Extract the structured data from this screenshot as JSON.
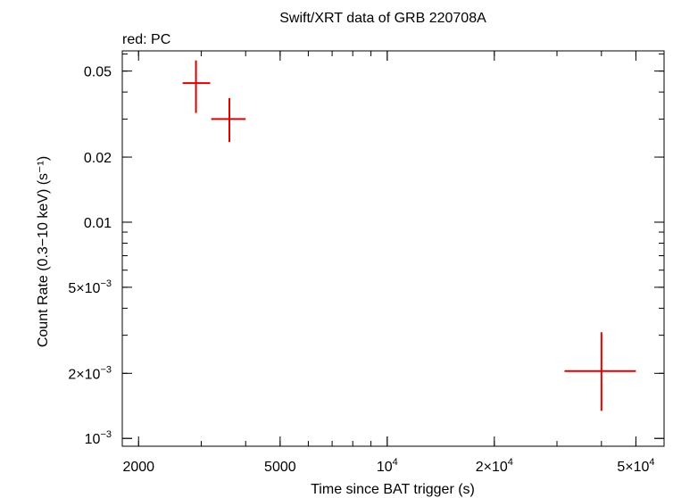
{
  "chart_data": {
    "type": "scatter",
    "title": "Swift/XRT data of GRB 220708A",
    "subtitle": "red: PC",
    "xlabel": "Time since BAT trigger (s)",
    "ylabel": "Count Rate (0.3−10 keV) (s⁻¹)",
    "x_scale": "log",
    "y_scale": "log",
    "xlim": [
      1800,
      60000
    ],
    "ylim": [
      0.00092,
      0.062
    ],
    "x_ticks": [
      {
        "value": 2000,
        "label": "2000"
      },
      {
        "value": 5000,
        "label": "5000"
      },
      {
        "value": 10000,
        "label": "10",
        "sup": "4"
      },
      {
        "value": 20000,
        "label": "2×10",
        "sup": "4"
      },
      {
        "value": 50000,
        "label": "5×10",
        "sup": "4"
      }
    ],
    "y_ticks": [
      {
        "value": 0.001,
        "label": "10",
        "sup": "−3"
      },
      {
        "value": 0.002,
        "label": "2×10",
        "sup": "−3"
      },
      {
        "value": 0.005,
        "label": "5×10",
        "sup": "−3"
      },
      {
        "value": 0.01,
        "label": "0.01"
      },
      {
        "value": 0.02,
        "label": "0.02"
      },
      {
        "value": 0.05,
        "label": "0.05"
      }
    ],
    "series": [
      {
        "color": "#e00000",
        "points": [
          {
            "x": 2900,
            "x_lo": 2660,
            "x_hi": 3180,
            "y": 0.044,
            "y_lo": 0.032,
            "y_hi": 0.056
          },
          {
            "x": 3600,
            "x_lo": 3200,
            "x_hi": 4000,
            "y": 0.03,
            "y_lo": 0.0235,
            "y_hi": 0.0375
          },
          {
            "x": 40000,
            "x_lo": 31500,
            "x_hi": 50000,
            "y": 0.00205,
            "y_lo": 0.00134,
            "y_hi": 0.0031
          }
        ]
      }
    ]
  }
}
